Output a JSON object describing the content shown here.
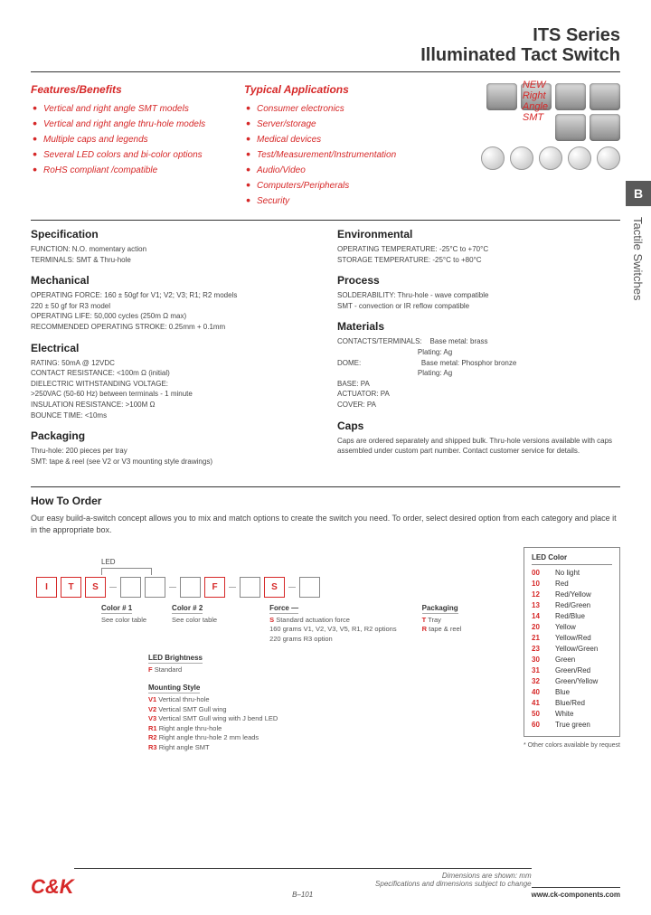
{
  "header": {
    "series": "ITS Series",
    "product": "Illuminated Tact Switch"
  },
  "features": {
    "title": "Features/Benefits",
    "items": [
      "Vertical and right angle SMT models",
      "Vertical and right angle thru-hole models",
      "Multiple caps and legends",
      "Several LED colors and bi-color options",
      "RoHS compliant /compatible"
    ]
  },
  "applications": {
    "title": "Typical Applications",
    "items": [
      "Consumer electronics",
      "Server/storage",
      "Medical devices",
      "Test/Measurement/Instrumentation",
      "Audio/Video",
      "Computers/Peripherals",
      "Security"
    ]
  },
  "new_badge": "NEW\nRight\nAngle\nSMT",
  "side_tab": {
    "letter": "B",
    "label": "Tactile Switches"
  },
  "spec": {
    "specification": {
      "title": "Specification",
      "lines": "FUNCTION: N.O. momentary action\nTERMINALS: SMT & Thru-hole"
    },
    "mechanical": {
      "title": "Mechanical",
      "lines": "OPERATING FORCE: 160 ± 50gf for V1; V2; V3; R1; R2 models\n    220 ± 50 gf for R3 model\nOPERATING LIFE: 50,000 cycles (250m Ω max)\nRECOMMENDED OPERATING STROKE: 0.25mm + 0.1mm"
    },
    "electrical": {
      "title": "Electrical",
      "lines": "RATING: 50mA @ 12VDC\nCONTACT RESISTANCE: <100m Ω (initial)\nDIELECTRIC WITHSTANDING VOLTAGE:\n    >250VAC (50-60 Hz) between terminals - 1 minute\nINSULATION RESISTANCE: >100M Ω\nBOUNCE TIME: <10ms"
    },
    "packaging": {
      "title": "Packaging",
      "lines": "Thru-hole: 200 pieces per tray\nSMT: tape & reel (see V2 or V3 mounting style drawings)"
    },
    "environmental": {
      "title": "Environmental",
      "lines": "OPERATING TEMPERATURE: -25°C to +70°C\nSTORAGE TEMPERATURE: -25°C to +80°C"
    },
    "process": {
      "title": "Process",
      "lines": "SOLDERABILITY: Thru-hole - wave compatible\nSMT - convection or IR reflow compatible"
    },
    "materials": {
      "title": "Materials",
      "lines": "CONTACTS/TERMINALS:    Base metal: brass\n                                        Plating: Ag\nDOME:                              Base metal: Phosphor bronze\n                                        Plating: Ag\nBASE: PA\nACTUATOR: PA\nCOVER: PA"
    },
    "caps": {
      "title": "Caps",
      "lines": "Caps are ordered separately and shipped bulk. Thru-hole versions available with caps assembled under custom part number. Contact customer service for details."
    }
  },
  "howto": {
    "title": "How To Order",
    "text": "Our easy build-a-switch concept allows you to mix and match options to create the switch you need. To order, select desired option from each category and place it in the appropriate box."
  },
  "order": {
    "led_label": "LED",
    "prefix": [
      "I",
      "T",
      "S"
    ],
    "fixed": {
      "f": "F",
      "s": "S"
    },
    "annot": {
      "color1": {
        "t": "Color # 1",
        "d": "See color table"
      },
      "color2": {
        "t": "Color # 2",
        "d": "See color table"
      },
      "bright": {
        "t": "LED Brightness",
        "codes": [
          [
            "F",
            "Standard"
          ]
        ]
      },
      "mount": {
        "t": "Mounting Style",
        "codes": [
          [
            "V1",
            "Vertical thru-hole"
          ],
          [
            "V2",
            "Vertical SMT Gull wing"
          ],
          [
            "V3",
            "Vertical SMT Gull wing with J bend LED"
          ],
          [
            "R1",
            "Right angle thru-hole"
          ],
          [
            "R2",
            "Right angle thru-hole 2 mm leads"
          ],
          [
            "R3",
            "Right angle SMT"
          ]
        ]
      },
      "force": {
        "t": "Force  —",
        "codes": [
          [
            "S",
            "Standard actuation force\n160 grams V1, V2, V3, V5, R1, R2 options\n220 grams R3 option"
          ]
        ]
      },
      "pkg": {
        "t": "Packaging",
        "codes": [
          [
            "T",
            "Tray"
          ],
          [
            "R",
            "tape & reel"
          ]
        ]
      }
    }
  },
  "led_colors": {
    "title": "LED Color",
    "rows": [
      [
        "00",
        "No light"
      ],
      [
        "10",
        "Red"
      ],
      [
        "12",
        "Red/Yellow"
      ],
      [
        "13",
        "Red/Green"
      ],
      [
        "14",
        "Red/Blue"
      ],
      [
        "20",
        "Yellow"
      ],
      [
        "21",
        "Yellow/Red"
      ],
      [
        "23",
        "Yellow/Green"
      ],
      [
        "30",
        "Green"
      ],
      [
        "31",
        "Green/Red"
      ],
      [
        "32",
        "Green/Yellow"
      ],
      [
        "40",
        "Blue"
      ],
      [
        "41",
        "Blue/Red"
      ],
      [
        "50",
        "White"
      ],
      [
        "60",
        "True green"
      ]
    ],
    "note": "* Other colors available by request"
  },
  "footer": {
    "logo": "C&K",
    "disclaimer": "Dimensions are shown: mm\nSpecifications and dimensions subject to change",
    "url": "www.ck-components.com",
    "page": "B–101"
  }
}
